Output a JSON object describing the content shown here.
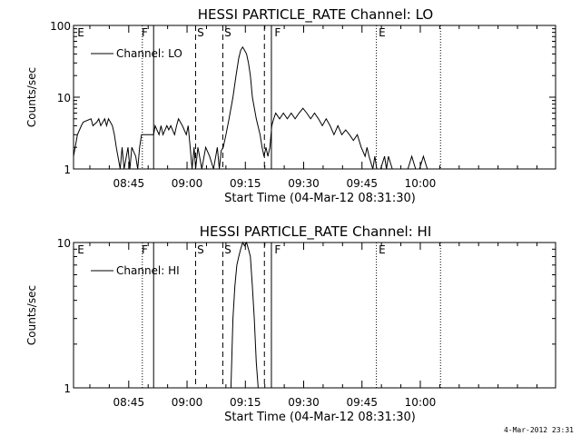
{
  "chart_data": [
    {
      "type": "line",
      "title": "HESSI PARTICLE_RATE Channel: LO",
      "xlabel": "Start Time (04-Mar-12 08:31:30)",
      "ylabel": "Counts/sec",
      "yscale": "log",
      "ylim": [
        1,
        100
      ],
      "xlim": [
        0,
        124
      ],
      "x_ticks": [
        {
          "x": 14.2,
          "label": "08:45"
        },
        {
          "x": 29.2,
          "label": "09:00"
        },
        {
          "x": 44.2,
          "label": "09:15"
        },
        {
          "x": 59.2,
          "label": "09:30"
        },
        {
          "x": 74.2,
          "label": "09:45"
        },
        {
          "x": 89.2,
          "label": "10:00"
        }
      ],
      "y_ticks": [
        {
          "y": 1,
          "label": "1"
        },
        {
          "y": 10,
          "label": "10"
        },
        {
          "y": 100,
          "label": "100"
        }
      ],
      "legend": {
        "label": "Channel: LO",
        "position": "top-left"
      },
      "markers": [
        {
          "x": 17.7,
          "style": "dotted",
          "label": ""
        },
        {
          "x": 20.6,
          "style": "solid",
          "label": ""
        },
        {
          "x": 31.4,
          "style": "dashed",
          "label": ""
        },
        {
          "x": 38.4,
          "style": "dashed",
          "label": ""
        },
        {
          "x": 49.1,
          "style": "dashed",
          "label": ""
        },
        {
          "x": 50.9,
          "style": "solid",
          "label": ""
        },
        {
          "x": 77.9,
          "style": "dotted",
          "label": ""
        },
        {
          "x": 94.4,
          "style": "dotted",
          "label": ""
        }
      ],
      "region_labels": [
        {
          "x": 1,
          "text": "E"
        },
        {
          "x": 17.5,
          "text": "F"
        },
        {
          "x": 31.8,
          "text": "S"
        },
        {
          "x": 38.8,
          "text": "S"
        },
        {
          "x": 51.7,
          "text": "F"
        },
        {
          "x": 78.5,
          "text": "E"
        }
      ],
      "series": [
        {
          "x": [
            0,
            1,
            2,
            2.5,
            4.5,
            5,
            6,
            6.5,
            7,
            8,
            8.5,
            9,
            10,
            10.5,
            11,
            12,
            12.5,
            13,
            14,
            14.5,
            15,
            16,
            16.5,
            17,
            17.5,
            20.6,
            21,
            22,
            22.5,
            23,
            24,
            24.5,
            25,
            26,
            26.5,
            27,
            28,
            29,
            29.5,
            30,
            30.5,
            31,
            31.4,
            32,
            33,
            34,
            35,
            36,
            37,
            37.5,
            38,
            38.5,
            39.2,
            40,
            41,
            41.8,
            42.5,
            43,
            43.5,
            44,
            44.5,
            45,
            45.5,
            46,
            47,
            48,
            48.5,
            49,
            49.5,
            50,
            50.5,
            51,
            51.5,
            52,
            53,
            54,
            55,
            56,
            57,
            58,
            59,
            60,
            61,
            62,
            63,
            64,
            65,
            66,
            67,
            68,
            69,
            70,
            71,
            72,
            73,
            74,
            75,
            75.5,
            76,
            77,
            77.5,
            78,
            79,
            80,
            80.5,
            81,
            82,
            83,
            84,
            85,
            86,
            87,
            88,
            89,
            90,
            91,
            92,
            93,
            94,
            95
          ],
          "y": [
            1.5,
            3,
            4,
            4.5,
            5,
            4,
            4.5,
            5,
            4,
            5,
            4,
            5,
            4,
            3,
            2,
            1,
            2,
            1,
            2,
            1,
            2,
            1.5,
            1,
            2,
            3,
            3,
            4,
            3,
            4,
            3,
            4,
            3.5,
            4,
            3,
            4,
            5,
            4,
            3,
            4,
            2,
            1,
            2,
            1,
            2,
            1,
            2,
            1.5,
            1,
            2,
            1,
            1.8,
            2,
            3,
            5,
            10,
            20,
            35,
            45,
            50,
            45,
            40,
            30,
            20,
            10,
            5,
            3,
            2,
            1.5,
            2,
            1.5,
            2,
            4,
            5,
            6,
            5,
            6,
            5,
            6,
            5,
            6,
            7,
            6,
            5,
            6,
            5,
            4,
            5,
            4,
            3,
            4,
            3,
            3.5,
            3,
            2.5,
            3,
            2,
            1.5,
            2,
            1.5,
            1,
            1.5,
            1,
            1,
            1.5,
            1,
            1.5,
            1,
            1,
            1,
            1,
            1,
            1.5,
            1,
            1,
            1.5,
            1,
            1,
            1,
            1,
            1
          ]
        }
      ]
    },
    {
      "type": "line",
      "title": "HESSI PARTICLE_RATE Channel: HI",
      "xlabel": "Start Time (04-Mar-12 08:31:30)",
      "ylabel": "Counts/sec",
      "yscale": "log",
      "ylim": [
        1,
        10
      ],
      "xlim": [
        0,
        124
      ],
      "x_ticks": [
        {
          "x": 14.2,
          "label": "08:45"
        },
        {
          "x": 29.2,
          "label": "09:00"
        },
        {
          "x": 44.2,
          "label": "09:15"
        },
        {
          "x": 59.2,
          "label": "09:30"
        },
        {
          "x": 74.2,
          "label": "09:45"
        },
        {
          "x": 89.2,
          "label": "10:00"
        }
      ],
      "y_ticks": [
        {
          "y": 1,
          "label": "1"
        },
        {
          "y": 10,
          "label": "10"
        }
      ],
      "legend": {
        "label": "Channel: HI",
        "position": "top-left"
      },
      "markers": [
        {
          "x": 17.7,
          "style": "dotted",
          "label": ""
        },
        {
          "x": 20.6,
          "style": "solid",
          "label": ""
        },
        {
          "x": 31.4,
          "style": "dashed",
          "label": ""
        },
        {
          "x": 38.4,
          "style": "dashed",
          "label": ""
        },
        {
          "x": 49.1,
          "style": "dashed",
          "label": ""
        },
        {
          "x": 50.9,
          "style": "solid",
          "label": ""
        },
        {
          "x": 77.9,
          "style": "dotted",
          "label": ""
        },
        {
          "x": 94.4,
          "style": "dotted",
          "label": ""
        }
      ],
      "region_labels": [
        {
          "x": 1,
          "text": "E"
        },
        {
          "x": 17.5,
          "text": "F"
        },
        {
          "x": 31.8,
          "text": "S"
        },
        {
          "x": 38.8,
          "text": "S"
        },
        {
          "x": 51.7,
          "text": "F"
        },
        {
          "x": 78.5,
          "text": "E"
        }
      ],
      "series": [
        {
          "x": [
            40.5,
            41,
            41.5,
            42,
            42.5,
            43,
            43.5,
            44,
            44.5,
            45,
            45.5,
            46,
            46.5,
            47,
            47.5
          ],
          "y": [
            1,
            3,
            5,
            7,
            8,
            9,
            10,
            9.5,
            10,
            9,
            8,
            5,
            3,
            1.5,
            1
          ]
        }
      ]
    }
  ],
  "footer": {
    "timestamp": "4-Mar-2012 23:31"
  }
}
